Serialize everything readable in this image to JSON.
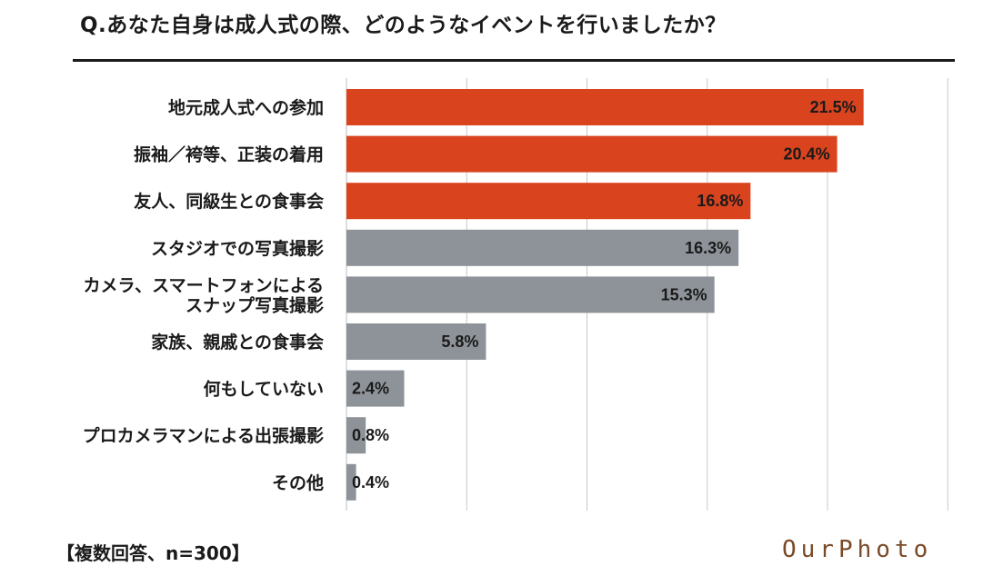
{
  "title": "Q.あなた自身は成人式の際、どのようなイベントを行いましたか？",
  "footnote": "【複数回答、n=300】",
  "logo_text": "OurPhoto",
  "colors": {
    "highlight": "#d9431e",
    "neutral": "#8e9399",
    "grid": "#c8c8c8",
    "text": "#1a1a1a"
  },
  "chart_data": {
    "type": "bar",
    "orientation": "horizontal",
    "title": "Q.あなた自身は成人式の際、どのようなイベントを行いましたか？",
    "xlim": [
      0,
      25
    ],
    "value_suffix": "%",
    "categories": [
      "地元成人式への参加",
      "振袖／袴等、正装の着用",
      "友人、同級生との食事会",
      "スタジオでの写真撮影",
      "カメラ、スマートフォンによる\nスナップ写真撮影",
      "家族、親戚との食事会",
      "何もしていない",
      "プロカメラマンによる出張撮影",
      "その他"
    ],
    "values": [
      21.5,
      20.4,
      16.8,
      16.3,
      15.3,
      5.8,
      2.4,
      0.8,
      0.4
    ],
    "highlight_count": 3,
    "grid": true,
    "legend": "none"
  }
}
